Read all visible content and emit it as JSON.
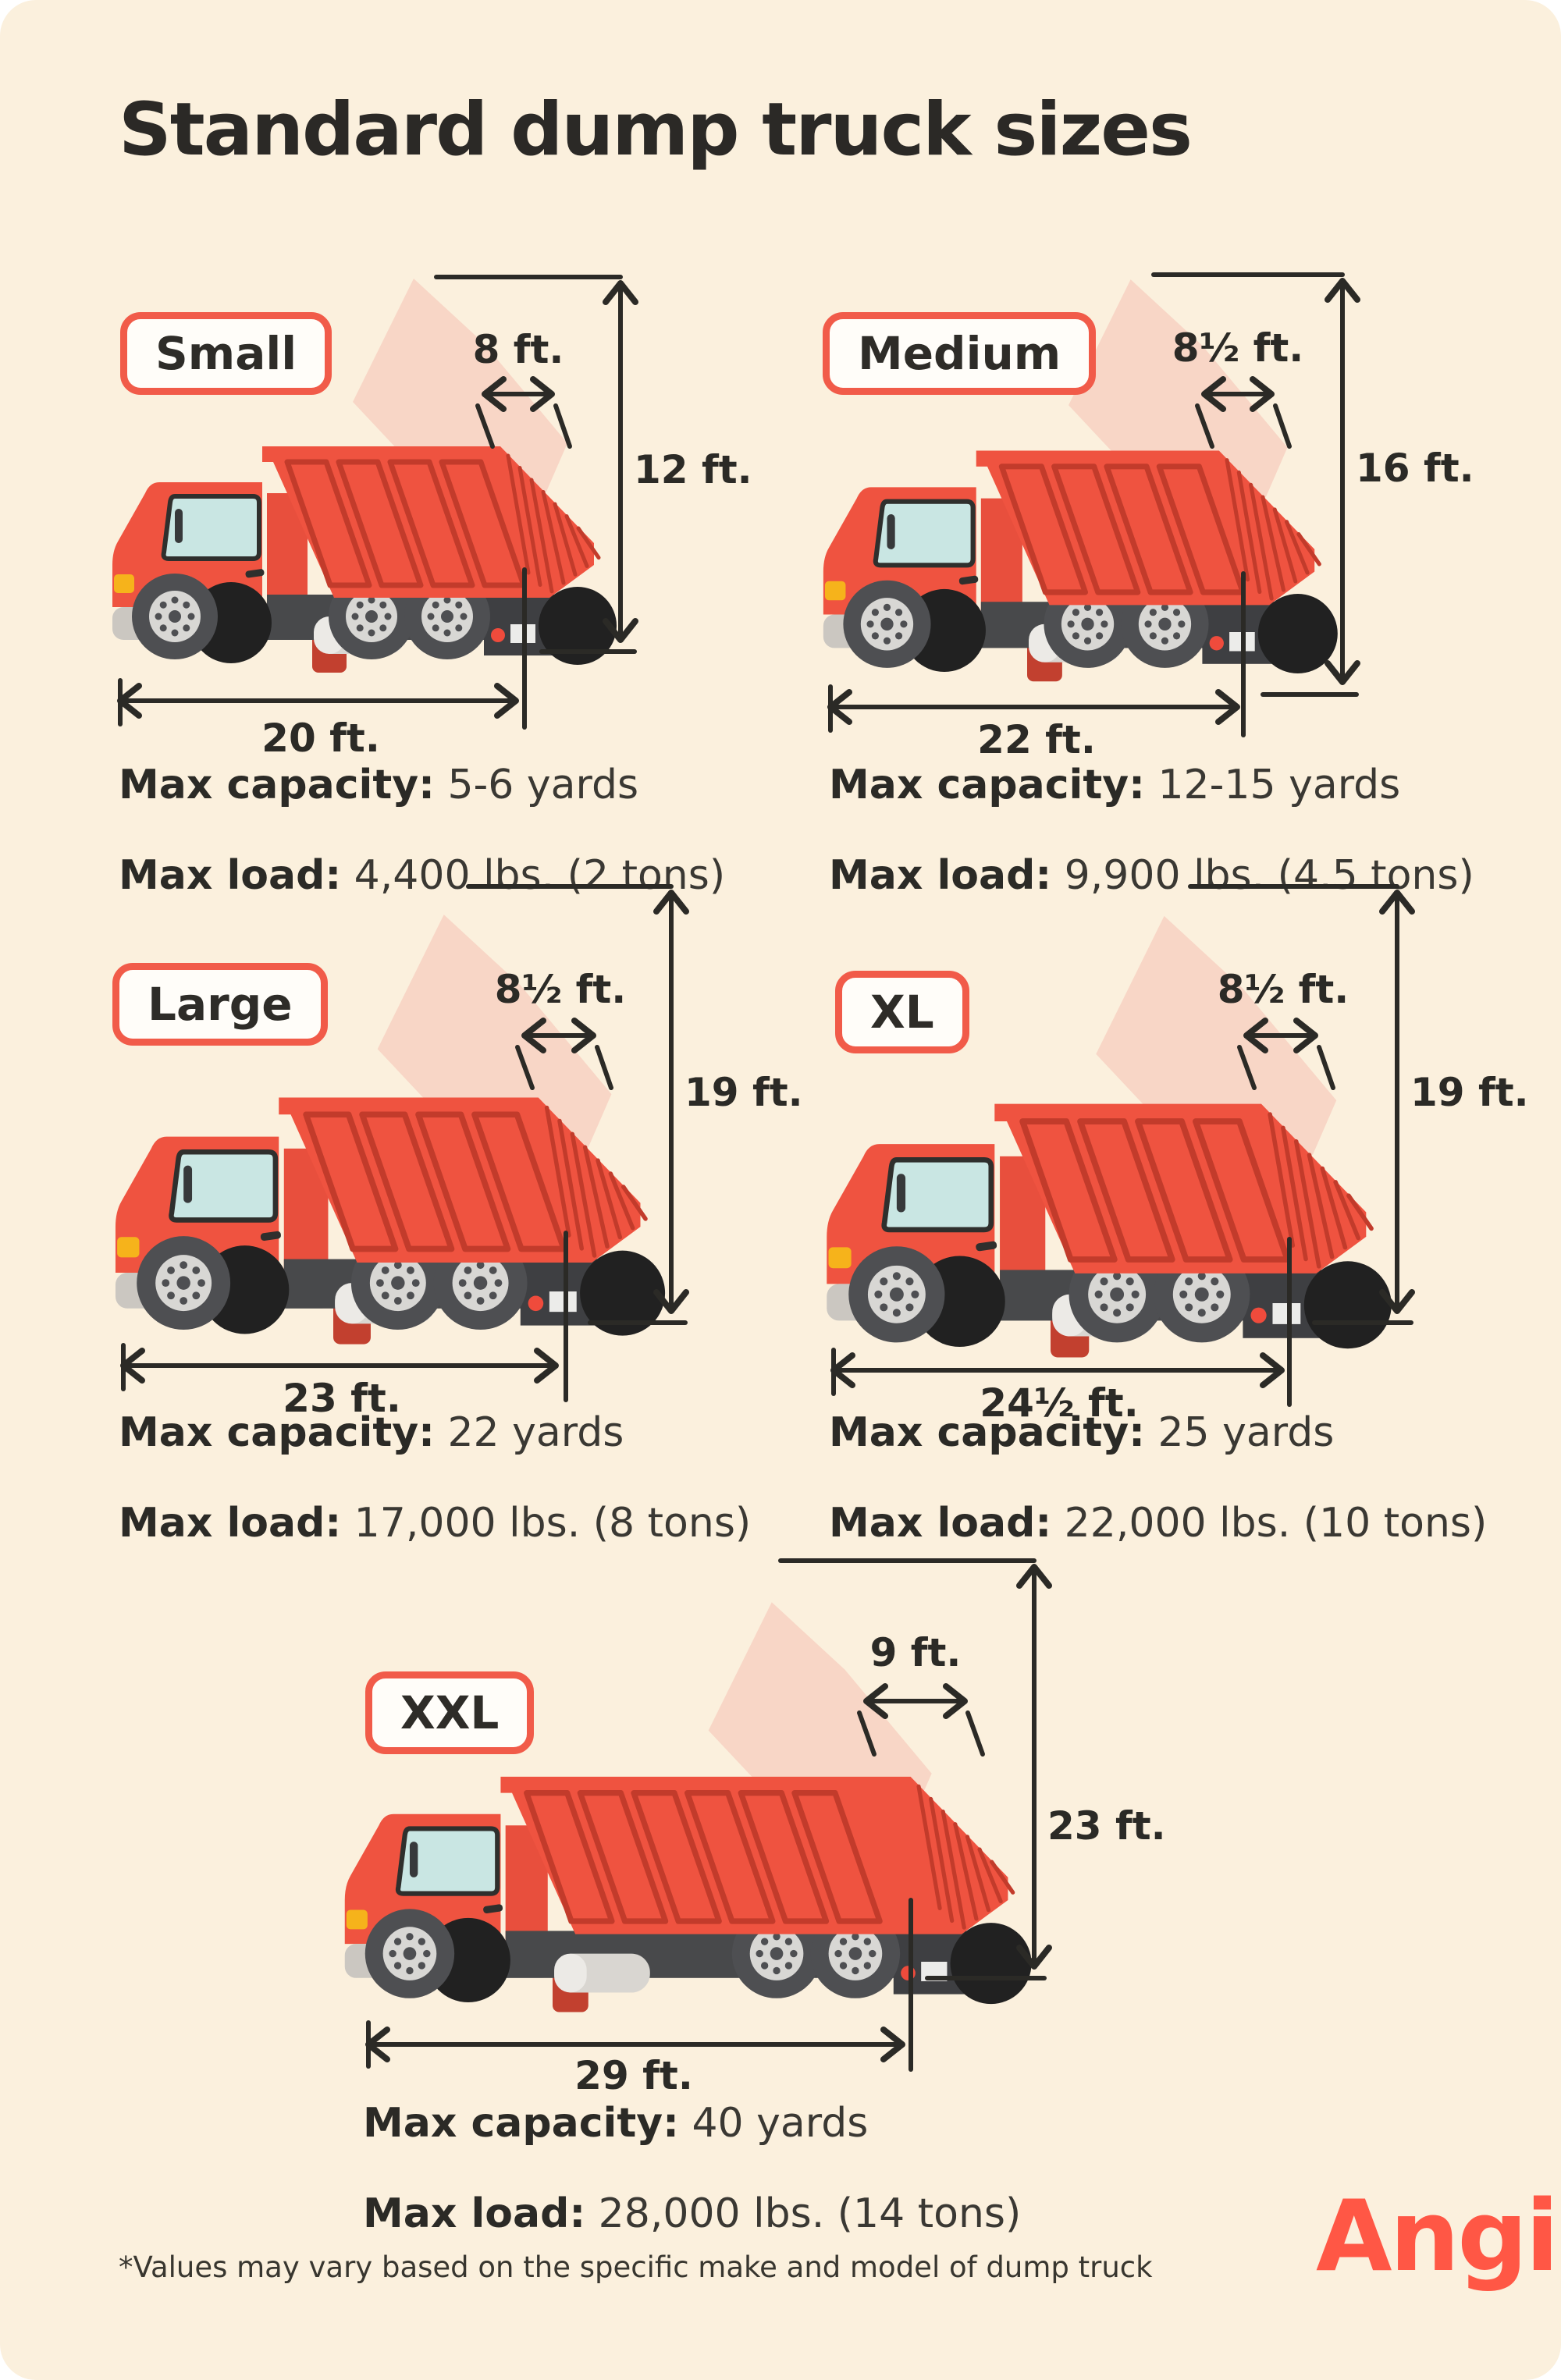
{
  "page": {
    "title": "Standard dump truck sizes",
    "footnote": "*Values may vary based on the specific make and model of dump truck",
    "brand": "Angi"
  },
  "colors": {
    "background": "#FBF0DD",
    "accent_red": "#F15B49",
    "truck_red": "#EF5340",
    "truck_red_dark": "#C23B2B",
    "pink_dump_shape": "#F8CFC1",
    "chassis_gray": "#48494B",
    "dimension_line": "#2B2A26",
    "brand_red": "#FF5745"
  },
  "trucks": [
    {
      "id": "small",
      "label": "Small",
      "bed_width": "8 ft.",
      "height": "12 ft.",
      "length": "20 ft.",
      "max_capacity_label": "Max capacity:",
      "max_capacity": "5-6 yards",
      "max_load_label": "Max load:",
      "max_load": "4,400 lbs. (2 tons)"
    },
    {
      "id": "medium",
      "label": "Medium",
      "bed_width": "8½ ft.",
      "height": "16 ft.",
      "length": "22 ft.",
      "max_capacity_label": "Max capacity:",
      "max_capacity": "12-15 yards",
      "max_load_label": "Max load:",
      "max_load": "9,900 lbs. (4.5 tons)"
    },
    {
      "id": "large",
      "label": "Large",
      "bed_width": "8½ ft.",
      "height": "19 ft.",
      "length": "23 ft.",
      "max_capacity_label": "Max capacity:",
      "max_capacity": "22 yards",
      "max_load_label": "Max load:",
      "max_load": "17,000 lbs. (8 tons)"
    },
    {
      "id": "xl",
      "label": "XL",
      "bed_width": "8½ ft.",
      "height": "19 ft.",
      "length": "24½ ft.",
      "max_capacity_label": "Max capacity:",
      "max_capacity": "25 yards",
      "max_load_label": "Max load:",
      "max_load": "22,000 lbs. (10 tons)"
    },
    {
      "id": "xxl",
      "label": "XXL",
      "bed_width": "9 ft.",
      "height": "23 ft.",
      "length": "29 ft.",
      "max_capacity_label": "Max capacity:",
      "max_capacity": "40 yards",
      "max_load_label": "Max load:",
      "max_load": "28,000 lbs. (14 tons)"
    }
  ]
}
